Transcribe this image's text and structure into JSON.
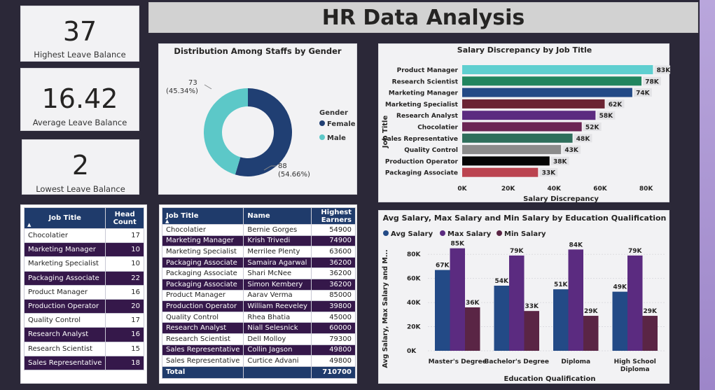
{
  "title": "HR Data Analysis",
  "kpis": [
    {
      "value": "37",
      "label": "Highest Leave Balance"
    },
    {
      "value": "16.42",
      "label": "Average Leave Balance"
    },
    {
      "value": "2",
      "label": "Lowest Leave Balance"
    }
  ],
  "colors": {
    "header": "#1f3b6b",
    "dark_row": "#35184a",
    "female": "#203f73",
    "male": "#5cc8c8"
  },
  "gender": {
    "title": "Distribution Among Staffs by Gender",
    "legend_title": "Gender",
    "female_label": "88",
    "female_pct": "(54.66%)",
    "male_label": "73",
    "male_pct": "(45.34%)"
  },
  "headcount": {
    "col1": "Job Title",
    "col2": "Head Count",
    "rows": [
      {
        "job": "Chocolatier",
        "count": "17"
      },
      {
        "job": "Marketing Manager",
        "count": "10"
      },
      {
        "job": "Marketing Specialist",
        "count": "10"
      },
      {
        "job": "Packaging Associate",
        "count": "22"
      },
      {
        "job": "Product Manager",
        "count": "16"
      },
      {
        "job": "Production Operator",
        "count": "20"
      },
      {
        "job": "Quality Control",
        "count": "17"
      },
      {
        "job": "Research Analyst",
        "count": "16"
      },
      {
        "job": "Research Scientist",
        "count": "15"
      },
      {
        "job": "Sales Representative",
        "count": "18"
      }
    ]
  },
  "earners": {
    "col1": "Job Title",
    "col2": "Name",
    "col3": "Highest Earners",
    "rows": [
      {
        "job": "Chocolatier",
        "name": "Bernie Gorges",
        "value": "54900"
      },
      {
        "job": "Marketing Manager",
        "name": "Krish Trivedi",
        "value": "74900"
      },
      {
        "job": "Marketing Specialist",
        "name": "Merrilee Plenty",
        "value": "63600"
      },
      {
        "job": "Packaging Associate",
        "name": "Samaira Agarwal",
        "value": "36200"
      },
      {
        "job": "Packaging Associate",
        "name": "Shari McNee",
        "value": "36200"
      },
      {
        "job": "Packaging Associate",
        "name": "Simon Kembery",
        "value": "36200"
      },
      {
        "job": "Product Manager",
        "name": "Aarav Verma",
        "value": "85000"
      },
      {
        "job": "Production Operator",
        "name": "William Reeveley",
        "value": "39800"
      },
      {
        "job": "Quality Control",
        "name": "Rhea Bhatia",
        "value": "45000"
      },
      {
        "job": "Research Analyst",
        "name": "Niall Selesnick",
        "value": "60000"
      },
      {
        "job": "Research Scientist",
        "name": "Dell Molloy",
        "value": "79300"
      },
      {
        "job": "Sales Representative",
        "name": "Collin Jagson",
        "value": "49800"
      },
      {
        "job": "Sales Representative",
        "name": "Curtice Advani",
        "value": "49800"
      }
    ],
    "total_label": "Total",
    "total_value": "710700"
  },
  "chart_data": [
    {
      "type": "pie",
      "title": "Distribution Among Staffs by Gender",
      "legend_title": "Gender",
      "legend_position": "right",
      "categories": [
        "Female",
        "Male"
      ],
      "values": [
        88,
        73
      ],
      "labels": [
        "88\n(54.66%)",
        "73\n(45.34%)"
      ],
      "colors": [
        "#203f73",
        "#5cc8c8"
      ]
    },
    {
      "type": "bar",
      "orientation": "horizontal",
      "title": "Salary Discrepancy by Job Title",
      "xlabel": "Salary Discrepancy",
      "ylabel": "Job Title",
      "categories": [
        "Product Manager",
        "Research Scientist",
        "Marketing Manager",
        "Marketing Specialist",
        "Research Analyst",
        "Chocolatier",
        "Sales Representative",
        "Quality Control",
        "Production Operator",
        "Packaging Associate"
      ],
      "values": [
        83000,
        78000,
        74000,
        62000,
        58000,
        52000,
        48000,
        43000,
        38000,
        33000
      ],
      "data_labels": [
        "83K",
        "78K",
        "74K",
        "62K",
        "58K",
        "52K",
        "48K",
        "43K",
        "38K",
        "33K"
      ],
      "colors": [
        "#5fcfd0",
        "#21855f",
        "#234a86",
        "#6b2433",
        "#5b2b80",
        "#6b2453",
        "#2f6f5c",
        "#8b8b8b",
        "#050505",
        "#bb4450"
      ],
      "xticks": [
        "0K",
        "20K",
        "40K",
        "60K",
        "80K"
      ],
      "xlim": [
        0,
        85000
      ],
      "grid": false
    },
    {
      "type": "bar",
      "title": "Avg Salary, Max Salary and Min Salary by Education Qualification",
      "xlabel": "Education Qualification",
      "ylabel": "Avg Salary, Max Salary and M...",
      "legend_position": "top-left",
      "categories": [
        "Master's Degree",
        "Bachelor's Degree",
        "Diploma",
        "High School Diploma"
      ],
      "series": [
        {
          "name": "Avg Salary",
          "color": "#234a86",
          "values": [
            67000,
            54000,
            51000,
            49000
          ],
          "labels": [
            "67K",
            "54K",
            "51K",
            "49K"
          ]
        },
        {
          "name": "Max Salary",
          "color": "#5b2b80",
          "values": [
            85000,
            79000,
            84000,
            79000
          ],
          "labels": [
            "85K",
            "79K",
            "84K",
            "79K"
          ]
        },
        {
          "name": "Min Salary",
          "color": "#5a2545",
          "values": [
            36000,
            33000,
            29000,
            29000
          ],
          "labels": [
            "36K",
            "33K",
            "29K",
            "29K"
          ]
        }
      ],
      "yticks": [
        "0K",
        "20K",
        "40K",
        "60K",
        "80K"
      ],
      "ylim": [
        0,
        90000
      ],
      "grid": true
    }
  ]
}
